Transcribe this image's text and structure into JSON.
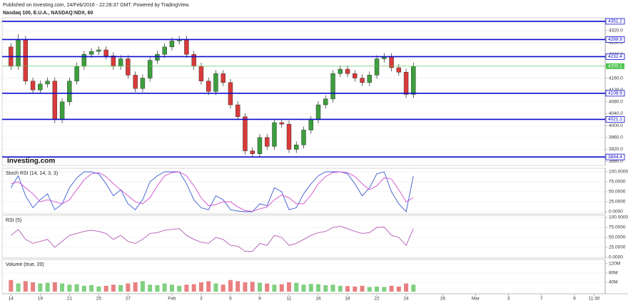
{
  "header": {
    "published": "Published on Investing.com, 24/Feb/2016 - 22:28:37 GMT. Powered by TradingView.",
    "symbol": "Nasdaq 100, E.U.A., NASDAQ:NDX, 60",
    "logo": "Investing.com"
  },
  "chart_data": [
    {
      "type": "candlestick",
      "open": [
        4265,
        4200,
        4290,
        4150,
        4120,
        4140,
        4150,
        4020,
        4080,
        4150,
        4200,
        4240,
        4250,
        4255,
        4235,
        4200,
        4225,
        4170,
        4125,
        4160,
        4220,
        4240,
        4265,
        4285,
        4290,
        4240,
        4200,
        4150,
        4115,
        4175,
        4145,
        4070,
        4030,
        3915,
        3905,
        3960,
        3930,
        4010,
        4005,
        3920,
        3935,
        3985,
        4020,
        4070,
        4090,
        4175,
        4190,
        4175,
        4160,
        4145,
        4170,
        4225,
        4232,
        4195,
        4180,
        4105
      ],
      "high": [
        4277,
        4308,
        4302,
        4162,
        4152,
        4162,
        4162,
        4092,
        4162,
        4212,
        4252,
        4262,
        4267,
        4267,
        4247,
        4237,
        4237,
        4182,
        4172,
        4232,
        4252,
        4277,
        4297,
        4302,
        4302,
        4252,
        4212,
        4162,
        4187,
        4187,
        4157,
        4082,
        4042,
        3927,
        3972,
        3972,
        4022,
        4022,
        4017,
        3947,
        3997,
        4032,
        4082,
        4102,
        4187,
        4202,
        4202,
        4187,
        4172,
        4182,
        4237,
        4244,
        4244,
        4207,
        4192,
        4212
      ],
      "low": [
        4188,
        4188,
        4138,
        4108,
        4108,
        4128,
        4008,
        4008,
        4068,
        4138,
        4188,
        4228,
        4238,
        4223,
        4188,
        4188,
        4158,
        4113,
        4113,
        4148,
        4208,
        4228,
        4253,
        4273,
        4228,
        4188,
        4138,
        4103,
        4103,
        4133,
        4058,
        4018,
        3903,
        3893,
        3893,
        3918,
        3918,
        3993,
        3908,
        3908,
        3923,
        3973,
        4008,
        4058,
        4078,
        4163,
        4163,
        4148,
        4133,
        4133,
        4158,
        4213,
        4183,
        4168,
        4093,
        4093
      ],
      "close": [
        4200,
        4290,
        4150,
        4120,
        4140,
        4150,
        4020,
        4080,
        4150,
        4200,
        4240,
        4250,
        4255,
        4235,
        4200,
        4225,
        4170,
        4125,
        4160,
        4220,
        4240,
        4265,
        4285,
        4290,
        4240,
        4200,
        4150,
        4115,
        4175,
        4145,
        4070,
        4030,
        3915,
        3905,
        3960,
        3930,
        4010,
        4005,
        3920,
        3935,
        3985,
        4020,
        4070,
        4090,
        4175,
        4190,
        4175,
        4160,
        4145,
        4170,
        4225,
        4232,
        4195,
        4180,
        4105,
        4200
      ],
      "up_color": "#3d9e3d",
      "down_color": "#d83a3a",
      "xlim": [
        -1.2,
        81.2
      ],
      "xticks": [
        {
          "value": 0,
          "label": "14"
        },
        {
          "value": 4,
          "label": "19"
        },
        {
          "value": 8,
          "label": "21"
        },
        {
          "value": 12,
          "label": "25"
        },
        {
          "value": 16,
          "label": "27"
        },
        {
          "value": 22,
          "label": "Feb"
        },
        {
          "value": 26,
          "label": "3"
        },
        {
          "value": 30,
          "label": "5"
        },
        {
          "value": 34,
          "label": "9"
        },
        {
          "value": 38,
          "label": "11"
        },
        {
          "value": 42,
          "label": "16"
        },
        {
          "value": 46,
          "label": "18"
        },
        {
          "value": 50,
          "label": "22"
        },
        {
          "value": 54,
          "label": "24"
        },
        {
          "value": 59,
          "label": "26"
        },
        {
          "value": 63.5,
          "label": "Mar"
        },
        {
          "value": 68,
          "label": "3"
        },
        {
          "value": 72.5,
          "label": "7"
        },
        {
          "value": 77,
          "label": "9"
        },
        {
          "value": 79.7,
          "label": "11:30"
        }
      ],
      "ylim": [
        3866,
        4363
      ],
      "yticks": [
        {
          "value": 3880,
          "label": "3880.0"
        },
        {
          "value": 3920,
          "label": "3920.0"
        },
        {
          "value": 3960,
          "label": "3960.0"
        },
        {
          "value": 4000,
          "label": "4000.0"
        },
        {
          "value": 4040,
          "label": "4040.0"
        },
        {
          "value": 4080,
          "label": "4080.0"
        },
        {
          "value": 4120,
          "label": "4120.0"
        },
        {
          "value": 4160,
          "label": "4160.0"
        },
        {
          "value": 4200,
          "label": "4200.0"
        },
        {
          "value": 4240,
          "label": "4240.0"
        },
        {
          "value": 4280,
          "label": "4280.0"
        },
        {
          "value": 4320,
          "label": "4320.0"
        }
      ],
      "levels": [
        4351.2,
        4289.9,
        4232.4,
        4108.9,
        4021.1,
        3894.4
      ],
      "level_color": "#0a0acc",
      "last_price": 4200.1,
      "last_price_color": "#4fc44f"
    },
    {
      "type": "line",
      "title": "Stoch RSI (14, 14, 3, 3)",
      "series": [
        {
          "color": "#3b5bd0",
          "values": [
            60,
            90,
            40,
            10,
            30,
            45,
            5,
            20,
            60,
            85,
            100,
            100,
            95,
            70,
            40,
            55,
            20,
            5,
            30,
            75,
            90,
            100,
            100,
            100,
            70,
            30,
            10,
            5,
            40,
            30,
            5,
            2,
            0,
            0,
            20,
            15,
            60,
            50,
            5,
            10,
            45,
            70,
            90,
            100,
            100,
            100,
            95,
            70,
            40,
            60,
            95,
            100,
            50,
            20,
            0,
            90
          ]
        },
        {
          "color": "#d24ccf",
          "values": [
            70,
            75,
            60,
            45,
            25,
            30,
            25,
            20,
            30,
            55,
            80,
            95,
            98,
            88,
            70,
            55,
            40,
            25,
            20,
            35,
            65,
            90,
            98,
            100,
            90,
            65,
            35,
            15,
            18,
            25,
            25,
            12,
            3,
            1,
            7,
            12,
            30,
            42,
            35,
            20,
            20,
            42,
            70,
            88,
            98,
            100,
            98,
            88,
            70,
            55,
            65,
            85,
            82,
            55,
            25,
            35
          ]
        }
      ],
      "ylim": [
        -5.4,
        108.9
      ],
      "yticks": [
        {
          "value": 0,
          "label": "0.0000"
        },
        {
          "value": 25,
          "label": "25.0000"
        },
        {
          "value": 50,
          "label": "50.0000"
        },
        {
          "value": 75,
          "label": "75.0000"
        },
        {
          "value": 100,
          "label": "100.0000"
        }
      ]
    },
    {
      "type": "line",
      "title": "RSI (5)",
      "series": [
        {
          "color": "#b35cb3",
          "values": [
            55,
            70,
            45,
            35,
            40,
            45,
            25,
            40,
            55,
            60,
            65,
            68,
            65,
            60,
            45,
            55,
            40,
            35,
            45,
            60,
            62,
            68,
            70,
            72,
            55,
            45,
            38,
            35,
            50,
            45,
            30,
            28,
            15,
            15,
            35,
            30,
            55,
            50,
            30,
            35,
            45,
            55,
            62,
            65,
            75,
            78,
            72,
            65,
            60,
            62,
            75,
            76,
            55,
            50,
            30,
            72
          ]
        }
      ],
      "ylim": [
        -1.8,
        105.4
      ],
      "yticks": [
        {
          "value": 0,
          "label": "0.0000"
        },
        {
          "value": 25,
          "label": "25.0000"
        },
        {
          "value": 50,
          "label": "50.0000"
        },
        {
          "value": 75,
          "label": "75.0000"
        },
        {
          "value": 100,
          "label": "100.0000"
        }
      ]
    },
    {
      "type": "bar",
      "title": "Volume (true, 20)",
      "values": [
        50,
        35,
        45,
        40,
        35,
        38,
        40,
        35,
        30,
        32,
        25,
        28,
        22,
        25,
        30,
        28,
        35,
        40,
        45,
        30,
        28,
        35,
        30,
        25,
        30,
        32,
        40,
        45,
        35,
        30,
        50,
        45,
        40,
        42,
        38,
        35,
        30,
        32,
        40,
        38,
        30,
        33,
        32,
        28,
        30,
        25,
        24,
        22,
        25,
        20,
        22,
        20,
        25,
        22,
        35,
        30
      ],
      "up_color": "#7fd07f",
      "down_color": "#e88080",
      "ylim": [
        -9,
        138
      ],
      "yticks": [
        {
          "value": 40,
          "label": "40M"
        },
        {
          "value": 80,
          "label": "80M"
        },
        {
          "value": 120,
          "label": "120M"
        }
      ]
    }
  ]
}
